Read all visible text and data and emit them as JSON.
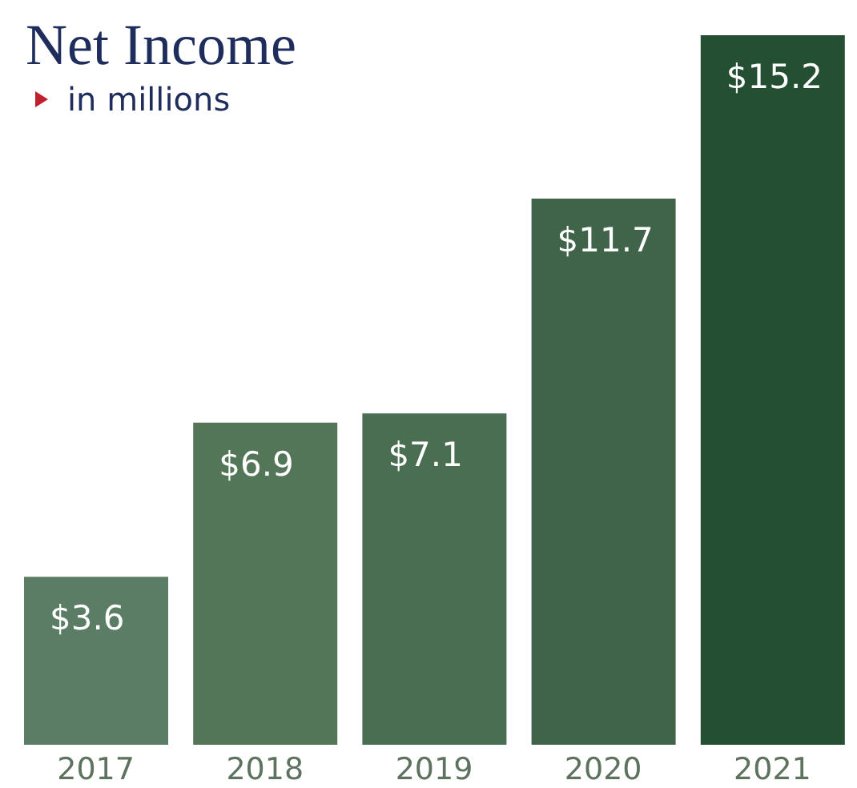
{
  "chart_data": {
    "type": "bar",
    "title": "Net Income",
    "subtitle": "in millions",
    "categories": [
      "2017",
      "2018",
      "2019",
      "2020",
      "2021"
    ],
    "values": [
      3.6,
      6.9,
      7.1,
      11.7,
      15.2
    ],
    "value_labels": [
      "$3.6",
      "$6.9",
      "$7.1",
      "$11.7",
      "$15.2"
    ],
    "colors": [
      "#5b7d65",
      "#537659",
      "#4a6e52",
      "#406449",
      "#244f33"
    ],
    "grid": false,
    "legend": false
  }
}
